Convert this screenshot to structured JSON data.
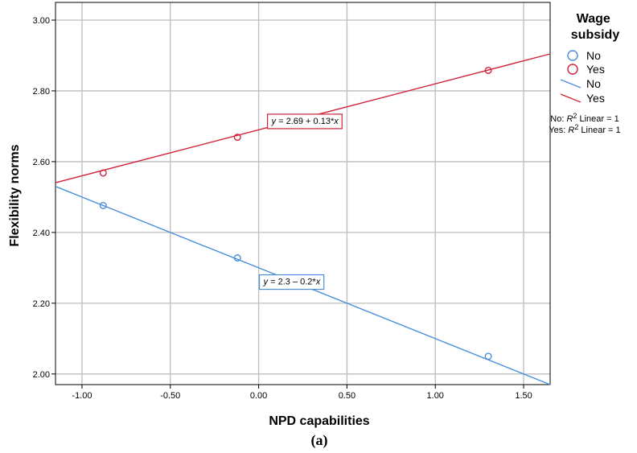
{
  "chart_data": {
    "type": "scatter",
    "title": "",
    "xlabel": "NPD capabilities",
    "ylabel": "Flexibility norms",
    "xlim": [
      -1.15,
      1.65
    ],
    "ylim": [
      1.97,
      3.05
    ],
    "x_ticks": [
      -1.0,
      -0.5,
      0.0,
      0.5,
      1.0,
      1.5
    ],
    "x_tick_labels": [
      "-1.00",
      "-0.50",
      "0.00",
      "0.50",
      "1.00",
      "1.50"
    ],
    "y_ticks": [
      2.0,
      2.2,
      2.4,
      2.6,
      2.8,
      3.0
    ],
    "y_tick_labels": [
      "2.00",
      "2.20",
      "2.40",
      "2.60",
      "2.80",
      "3.00"
    ],
    "grid": true,
    "legend": {
      "title": "Wage subsidy",
      "position": "right",
      "marker_entries": [
        "No",
        "Yes"
      ],
      "line_entries": [
        "No",
        "Yes"
      ],
      "notes": [
        {
          "prefix": "No: ",
          "r": "R",
          "sup": "2",
          "suffix": " Linear = 1"
        },
        {
          "prefix": "Yes: ",
          "r": "R",
          "sup": "2",
          "suffix": " Linear = 1"
        }
      ]
    },
    "series": [
      {
        "name": "No",
        "color": "#4a90d9",
        "points": [
          {
            "x": -0.88,
            "y": 2.476
          },
          {
            "x": -0.12,
            "y": 2.328
          },
          {
            "x": 1.3,
            "y": 2.05
          }
        ],
        "fit": {
          "intercept": 2.3,
          "slope": -0.2
        },
        "equation": {
          "lhs": "y",
          "text": " = 2.3 – 0.2*",
          "var": "x"
        }
      },
      {
        "name": "Yes",
        "color": "#d0233a",
        "points": [
          {
            "x": -0.88,
            "y": 2.568
          },
          {
            "x": -0.12,
            "y": 2.669
          },
          {
            "x": 1.3,
            "y": 2.858
          }
        ],
        "fit": {
          "intercept": 2.69,
          "slope": 0.13
        },
        "equation": {
          "lhs": "y",
          "text": " = 2.69 + 0.13*",
          "var": "x"
        }
      }
    ]
  },
  "caption": "(a)"
}
